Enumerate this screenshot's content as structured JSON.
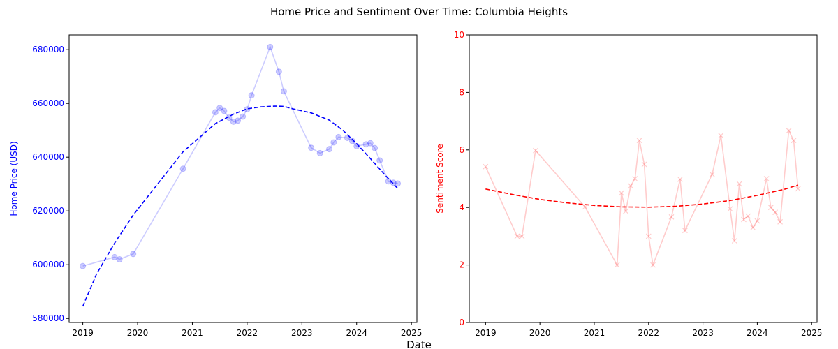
{
  "figure": {
    "title": "Home Price and Sentiment Over Time: Columbia Heights",
    "xlabel": "Date"
  },
  "chart_data": [
    {
      "type": "line",
      "panel": "left",
      "ylabel": "Home Price (USD)",
      "ylabel_color": "#0000ff",
      "xlim": [
        2018.75,
        2025.1
      ],
      "ylim": [
        578500,
        685500
      ],
      "x_ticks": [
        2019,
        2020,
        2021,
        2022,
        2023,
        2024,
        2025
      ],
      "y_ticks": [
        580000,
        600000,
        620000,
        640000,
        660000,
        680000
      ],
      "grid": false,
      "series": [
        {
          "style": "line-with-circle-markers",
          "color": "#0000ff",
          "opacity": 0.2,
          "points": [
            [
              2019.0,
              599500
            ],
            [
              2019.58,
              602800
            ],
            [
              2019.67,
              602000
            ],
            [
              2019.92,
              604000
            ],
            [
              2020.83,
              635700
            ],
            [
              2021.42,
              656700
            ],
            [
              2021.5,
              658300
            ],
            [
              2021.58,
              657200
            ],
            [
              2021.67,
              654700
            ],
            [
              2021.75,
              653200
            ],
            [
              2021.83,
              653600
            ],
            [
              2021.92,
              655100
            ],
            [
              2022.0,
              657800
            ],
            [
              2022.08,
              663000
            ],
            [
              2022.42,
              681000
            ],
            [
              2022.58,
              671800
            ],
            [
              2022.67,
              664500
            ],
            [
              2023.17,
              643500
            ],
            [
              2023.33,
              641500
            ],
            [
              2023.5,
              643000
            ],
            [
              2023.58,
              645500
            ],
            [
              2023.67,
              647500
            ],
            [
              2023.83,
              647200
            ],
            [
              2023.92,
              646000
            ],
            [
              2024.0,
              644100
            ],
            [
              2024.17,
              644800
            ],
            [
              2024.25,
              645200
            ],
            [
              2024.33,
              643400
            ],
            [
              2024.42,
              638800
            ],
            [
              2024.58,
              631000
            ],
            [
              2024.67,
              630500
            ],
            [
              2024.75,
              630200
            ]
          ]
        },
        {
          "style": "dashed-trend",
          "color": "#0000ff",
          "opacity": 1,
          "points": [
            [
              2019.0,
              584500
            ],
            [
              2019.25,
              596500
            ],
            [
              2019.58,
              608000
            ],
            [
              2019.92,
              618500
            ],
            [
              2020.83,
              642000
            ],
            [
              2021.42,
              652500
            ],
            [
              2021.75,
              656000
            ],
            [
              2022.0,
              658000
            ],
            [
              2022.25,
              658700
            ],
            [
              2022.5,
              659000
            ],
            [
              2022.67,
              658900
            ],
            [
              2022.83,
              658000
            ],
            [
              2023.17,
              656500
            ],
            [
              2023.5,
              653800
            ],
            [
              2023.75,
              650000
            ],
            [
              2024.0,
              645000
            ],
            [
              2024.25,
              639500
            ],
            [
              2024.5,
              633800
            ],
            [
              2024.75,
              628300
            ]
          ]
        }
      ]
    },
    {
      "type": "line",
      "panel": "right",
      "ylabel": "Sentiment Score",
      "ylabel_color": "#ff0000",
      "xlim": [
        2018.7,
        2025.1
      ],
      "ylim": [
        0,
        10
      ],
      "x_ticks": [
        2019,
        2020,
        2021,
        2022,
        2023,
        2024,
        2025
      ],
      "y_ticks": [
        0,
        2,
        4,
        6,
        8,
        10
      ],
      "grid": false,
      "series": [
        {
          "style": "line-with-x-markers",
          "color": "#ff0000",
          "opacity": 0.2,
          "points": [
            [
              2019.0,
              5.42
            ],
            [
              2019.58,
              3.0
            ],
            [
              2019.67,
              3.0
            ],
            [
              2019.92,
              5.98
            ],
            [
              2020.83,
              4.02
            ],
            [
              2021.42,
              2.0
            ],
            [
              2021.5,
              4.5
            ],
            [
              2021.58,
              3.87
            ],
            [
              2021.67,
              4.75
            ],
            [
              2021.75,
              5.0
            ],
            [
              2021.83,
              6.33
            ],
            [
              2021.92,
              5.5
            ],
            [
              2022.0,
              3.0
            ],
            [
              2022.08,
              2.0
            ],
            [
              2022.42,
              3.67
            ],
            [
              2022.58,
              4.98
            ],
            [
              2022.67,
              3.2
            ],
            [
              2023.17,
              5.15
            ],
            [
              2023.33,
              6.5
            ],
            [
              2023.5,
              3.95
            ],
            [
              2023.58,
              2.84
            ],
            [
              2023.67,
              4.82
            ],
            [
              2023.75,
              3.58
            ],
            [
              2023.83,
              3.7
            ],
            [
              2023.92,
              3.3
            ],
            [
              2024.0,
              3.53
            ],
            [
              2024.17,
              5.0
            ],
            [
              2024.25,
              4.0
            ],
            [
              2024.33,
              3.83
            ],
            [
              2024.42,
              3.5
            ],
            [
              2024.58,
              6.67
            ],
            [
              2024.67,
              6.33
            ],
            [
              2024.75,
              4.65
            ]
          ]
        },
        {
          "style": "dashed-trend",
          "color": "#ff0000",
          "opacity": 1,
          "points": [
            [
              2019.0,
              4.64
            ],
            [
              2019.5,
              4.45
            ],
            [
              2020.0,
              4.28
            ],
            [
              2020.5,
              4.16
            ],
            [
              2021.0,
              4.07
            ],
            [
              2021.5,
              4.02
            ],
            [
              2022.0,
              4.01
            ],
            [
              2022.5,
              4.04
            ],
            [
              2023.0,
              4.12
            ],
            [
              2023.5,
              4.24
            ],
            [
              2024.0,
              4.42
            ],
            [
              2024.5,
              4.63
            ],
            [
              2024.75,
              4.78
            ]
          ]
        }
      ]
    }
  ]
}
